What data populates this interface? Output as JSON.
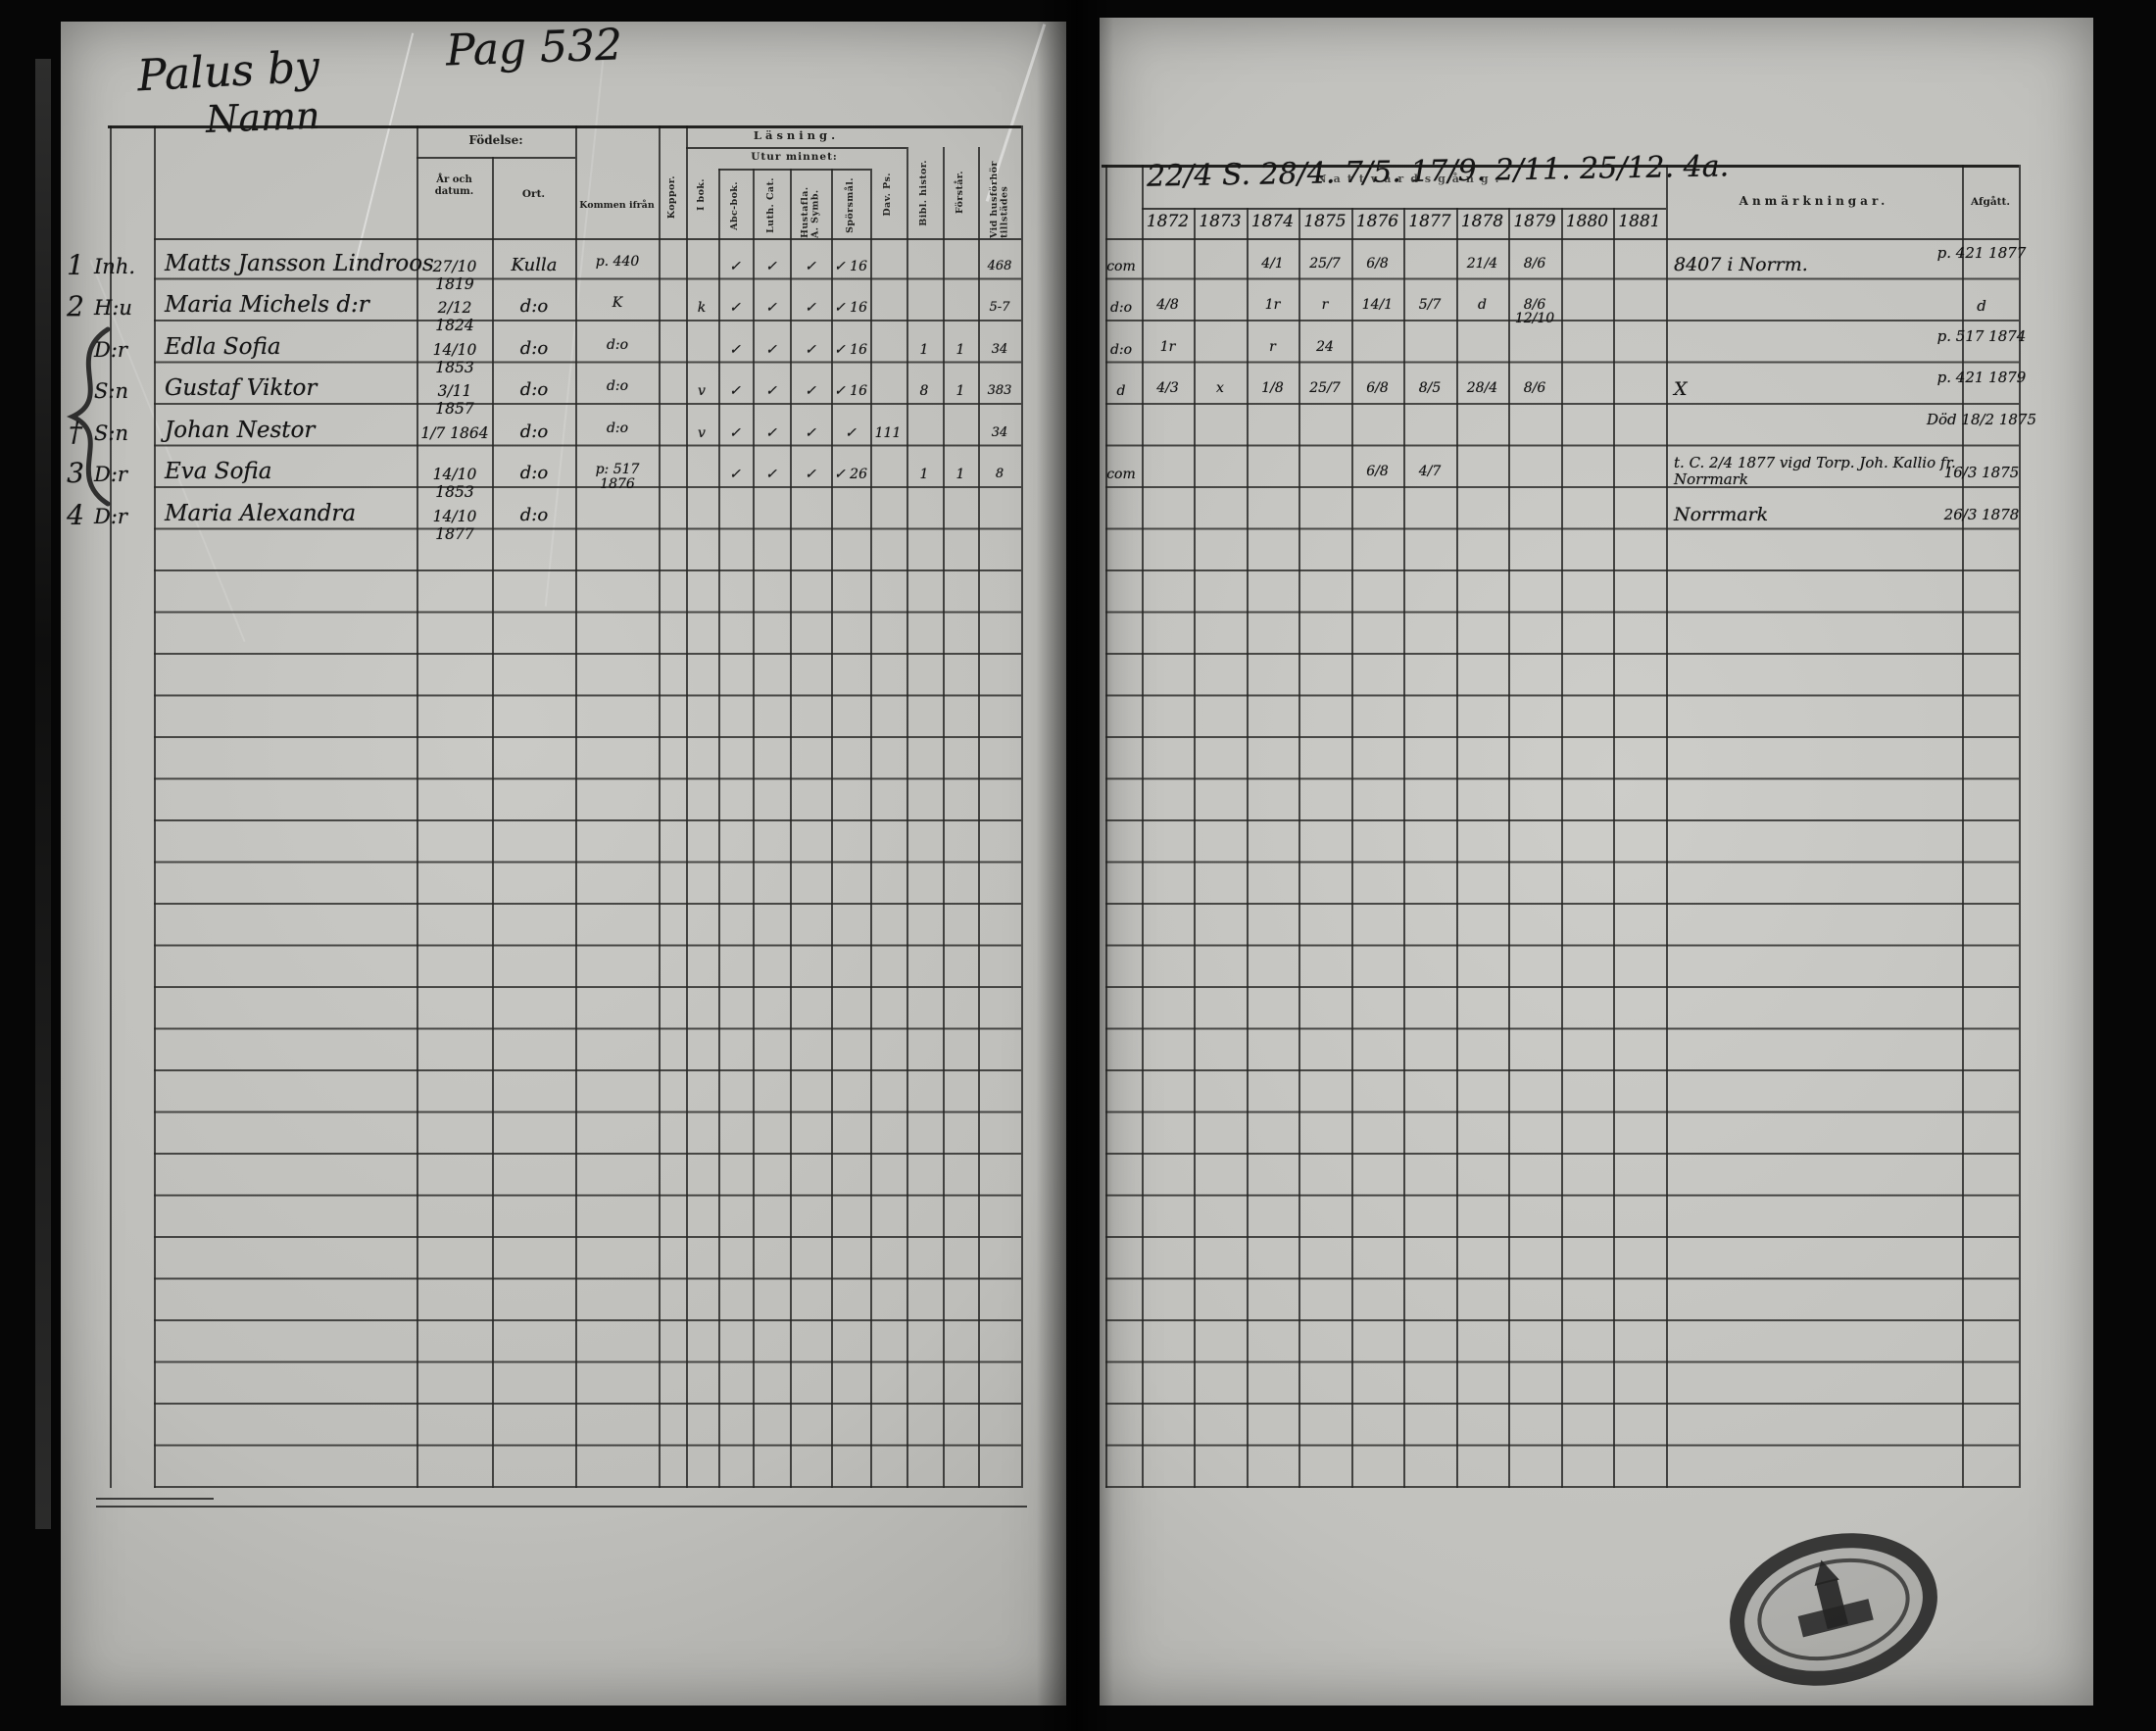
{
  "document": {
    "place_title": "Palus by",
    "page_number_label": "Pag 532",
    "name_column_label": "Namn"
  },
  "colors": {
    "paper": "#c1c1bd",
    "ink": "#151515"
  },
  "left_page": {
    "headers": {
      "birth_group": "Födelse:",
      "birth_year": "År och datum.",
      "birth_place": "Ort.",
      "came_from": "Kommen ifrån",
      "smallpox": "Koppor.",
      "reading_group": "Läsning.",
      "by_heart_group": "Utur minnet:",
      "columns": [
        "I bok.",
        "Abc-bok.",
        "Luth. Cat.",
        "Hustafla. A. Symb.",
        "Spörsmål.",
        "Dav. Ps.",
        "Bibl. histor.",
        "Förstår.",
        "Vid husförhör tillstädes"
      ]
    },
    "rows": [
      {
        "no": "1",
        "rel": "Inh.",
        "name": "Matts Jansson Lindroos",
        "born": "27/10 1819",
        "ort": "Kulla",
        "kommen": "p. 440",
        "marks": [
          "",
          "✓",
          "✓",
          "✓",
          "✓ 16",
          "",
          "",
          ""
        ],
        "narv": "468"
      },
      {
        "no": "2",
        "rel": "H:u",
        "name": "Maria Michels d:r",
        "born": "2/12 1824",
        "ort": "d:o",
        "kommen": "K",
        "marks": [
          "k",
          "✓",
          "✓",
          "✓",
          "✓ 16",
          "",
          "",
          ""
        ],
        "narv": "5-7"
      },
      {
        "no": "",
        "rel": "D:r",
        "name": "Edla Sofia",
        "born": "14/10 1853",
        "ort": "d:o",
        "kommen": "d:o",
        "marks": [
          "",
          "✓",
          "✓",
          "✓",
          "✓ 16",
          "",
          "1",
          "1"
        ],
        "narv": "34"
      },
      {
        "no": "",
        "rel": "S:n",
        "name": "Gustaf Viktor",
        "born": "3/11 1857",
        "ort": "d:o",
        "kommen": "d:o",
        "marks": [
          "v",
          "✓",
          "✓",
          "✓",
          "✓ 16",
          "",
          "8",
          "1"
        ],
        "narv": "383"
      },
      {
        "no": "†",
        "rel": "S:n",
        "name": "Johan Nestor",
        "born": "1/7 1864",
        "ort": "d:o",
        "kommen": "d:o",
        "marks": [
          "v",
          "✓",
          "✓",
          "✓",
          "✓",
          "111",
          "",
          ""
        ],
        "narv": "34"
      },
      {
        "no": "3",
        "rel": "D:r",
        "name": "Eva Sofia",
        "born": "14/10 1853",
        "ort": "d:o",
        "kommen": "p: 517 1876",
        "marks": [
          "",
          "✓",
          "✓",
          "✓",
          "✓ 26",
          "",
          "1",
          "1"
        ],
        "narv": "8"
      },
      {
        "no": "4",
        "rel": "D:r",
        "name": "Maria Alexandra",
        "born": "14/10 1877",
        "ort": "d:o",
        "kommen": "",
        "marks": [
          "",
          "",
          "",
          "",
          "",
          "",
          "",
          ""
        ],
        "narv": ""
      }
    ]
  },
  "right_page": {
    "headers": {
      "communion_group_printed": "Nattvardsgång.",
      "communion_scrawl": "22/4 S. 28/4. 7/5. 17/9. 2/11. 25/12. 4a.",
      "years": [
        "1872",
        "1873",
        "1874",
        "1875",
        "1876",
        "1877",
        "1878",
        "1879",
        "1880",
        "1881"
      ],
      "remarks": "Anmärkningar.",
      "departed": "Afgått."
    },
    "rows": [
      {
        "pre": "com",
        "cells": [
          "",
          "",
          "4/1",
          "25/7",
          "6/8",
          "",
          "21/4",
          "8/6",
          "",
          ""
        ],
        "anm": "8407 i Norrm.",
        "afgatt": "p. 421 1877"
      },
      {
        "pre": "d:o",
        "cells": [
          "4/8",
          "",
          "1r",
          "r",
          "14/1",
          "5/7",
          "d",
          "8/6 12/10",
          "",
          ""
        ],
        "anm": "",
        "afgatt": "d"
      },
      {
        "pre": "d:o",
        "cells": [
          "1r",
          "",
          "r",
          "24",
          "",
          "",
          "",
          "",
          "",
          ""
        ],
        "anm": "",
        "afgatt": "p. 517 1874"
      },
      {
        "pre": "d",
        "cells": [
          "4/3",
          "x",
          "1/8",
          "25/7",
          "6/8",
          "8/5",
          "28/4",
          "8/6",
          "",
          ""
        ],
        "anm": "X",
        "afgatt": "p. 421 1879"
      },
      {
        "pre": "",
        "cells": [
          "",
          "",
          "",
          "",
          "",
          "",
          "",
          "",
          "",
          ""
        ],
        "anm": "",
        "afgatt": "Död 18/2 1875"
      },
      {
        "pre": "com",
        "cells": [
          "",
          "",
          "",
          "",
          "6/8",
          "4/7",
          "",
          "",
          "",
          ""
        ],
        "anm": "t. C. 2/4 1877 vigd Torp. Joh. Kallio fr. Norrmark",
        "afgatt": "16/3 1875"
      },
      {
        "pre": "",
        "cells": [
          "",
          "",
          "",
          "",
          "",
          "",
          "",
          "",
          "",
          ""
        ],
        "anm": "Norrmark",
        "afgatt": "26/3 1878"
      }
    ]
  }
}
